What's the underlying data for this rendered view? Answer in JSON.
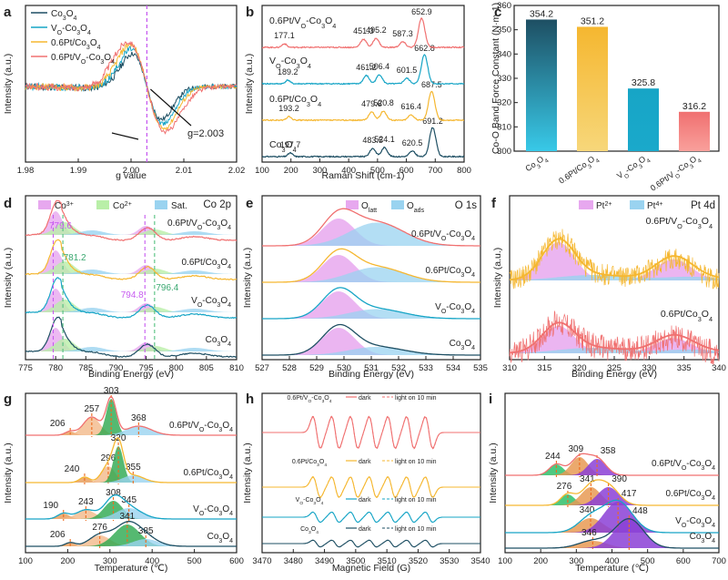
{
  "colors": {
    "co": "#1e4f63",
    "vo": "#17a5c6",
    "pt": "#f5b730",
    "ptvo": "#f07070",
    "pink": "#e7a8ef",
    "green": "#b9efa8",
    "blue": "#9ad3f0",
    "purple": "#8b40d6",
    "teal": "#1a9b7b",
    "orange": "#e79a54",
    "axis": "#222222",
    "dash": "#c75bf0"
  },
  "chart_data": [
    {
      "panel": "a",
      "type": "line",
      "xlabel": "g value",
      "ylabel": "Intensity (a.u.)",
      "x_ticks": [
        "1.98",
        "1.99",
        "2.00",
        "2.01",
        "2.02"
      ],
      "xlim": [
        1.98,
        2.02
      ],
      "legend": [
        "Co3O4",
        "VO-Co3O4",
        "0.6Pt/Co3O4",
        "0.6Pt/VO-Co3O4"
      ],
      "annotations": [
        "g=2.003"
      ]
    },
    {
      "panel": "b",
      "type": "line",
      "xlabel": "Raman Shift (cm-1)",
      "ylabel": "Intensity (a.u.)",
      "x_ticks": [
        "100",
        "200",
        "300",
        "400",
        "500",
        "600",
        "700",
        "800"
      ],
      "xlim": [
        100,
        800
      ],
      "series": [
        {
          "name": "Co3O4",
          "peaks": [
            197.7,
            483.5,
            524.1,
            620.5,
            691.2
          ]
        },
        {
          "name": "0.6Pt/Co3O4",
          "peaks": [
            193.2,
            479.6,
            520.8,
            616.4,
            687.5
          ]
        },
        {
          "name": "VO-Co3O4",
          "peaks": [
            189.2,
            461.2,
            506.4,
            601.5,
            662.8
          ]
        },
        {
          "name": "0.6Pt/VO-Co3O4",
          "peaks": [
            177.1,
            451.3,
            495.2,
            587.3,
            652.9
          ]
        }
      ]
    },
    {
      "panel": "c",
      "type": "bar",
      "ylabel": "Co-O Band Force Constant (N·m-1)",
      "categories": [
        "Co3O4",
        "0.6Pt/Co3O4",
        "VO-Co3O4",
        "0.6Pt/VO-Co3O4"
      ],
      "values": [
        354.2,
        351.2,
        325.8,
        316.2
      ],
      "value_labels": [
        "354.2",
        "351.2",
        "325.8",
        "316.2"
      ],
      "ylim": [
        300,
        360
      ],
      "y_ticks": [
        "300",
        "310",
        "320",
        "330",
        "340",
        "350",
        "360"
      ]
    },
    {
      "panel": "d",
      "type": "line",
      "title": "Co 2p",
      "xlabel": "Binding Energy (eV)",
      "ylabel": "Intensity (a.u.)",
      "x_ticks": [
        "775",
        "780",
        "785",
        "790",
        "795",
        "800",
        "805",
        "810"
      ],
      "xlim": [
        775,
        810
      ],
      "legend": [
        "Co3+",
        "Co2+",
        "Sat."
      ],
      "samples": [
        "0.6Pt/VO-Co3O4",
        "0.6Pt/Co3O4",
        "VO-Co3O4",
        "Co3O4"
      ],
      "annotations": [
        "779.6",
        "781.2",
        "794.8",
        "796.4"
      ]
    },
    {
      "panel": "e",
      "type": "line",
      "title": "O 1s",
      "xlabel": "Binding Energy (eV)",
      "ylabel": "Intensity (a.u.)",
      "x_ticks": [
        "527",
        "528",
        "529",
        "530",
        "531",
        "532",
        "533",
        "534",
        "535"
      ],
      "xlim": [
        527,
        535
      ],
      "legend": [
        "Olatt",
        "Oads"
      ],
      "samples": [
        "0.6Pt/VO-Co3O4",
        "0.6Pt/Co3O4",
        "VO-Co3O4",
        "Co3O4"
      ]
    },
    {
      "panel": "f",
      "type": "line",
      "title": "Pt 4d",
      "xlabel": "Binding Energy (eV)",
      "ylabel": "Intensity (a.u.)",
      "x_ticks": [
        "310",
        "315",
        "320",
        "325",
        "330",
        "335",
        "340"
      ],
      "xlim": [
        310,
        340
      ],
      "legend": [
        "Pt2+",
        "Pt4+"
      ],
      "samples": [
        "0.6Pt/VO-Co3O4",
        "0.6Pt/Co3O4"
      ]
    },
    {
      "panel": "g",
      "type": "area",
      "xlabel": "Temperature (℃)",
      "ylabel": "Intensity (a.u.)",
      "x_ticks": [
        "100",
        "200",
        "300",
        "400",
        "500",
        "600"
      ],
      "xlim": [
        100,
        600
      ],
      "series": [
        {
          "name": "0.6Pt/VO-Co3O4",
          "peaks": [
            206,
            257,
            303,
            368
          ]
        },
        {
          "name": "0.6Pt/Co3O4",
          "peaks": [
            240,
            296,
            320,
            355
          ]
        },
        {
          "name": "VO-Co3O4",
          "peaks": [
            190,
            243,
            308,
            345
          ]
        },
        {
          "name": "Co3O4",
          "peaks": [
            206,
            276,
            341,
            385
          ]
        }
      ]
    },
    {
      "panel": "h",
      "type": "line",
      "xlabel": "Magnetic Field (G)",
      "ylabel": "Intensity (a.u.)",
      "x_ticks": [
        "3470",
        "3480",
        "3490",
        "3500",
        "3510",
        "3520",
        "3530",
        "3540"
      ],
      "xlim": [
        3470,
        3540
      ],
      "legend": [
        "dark",
        "light on 10 min"
      ],
      "samples": [
        "0.6Pt/VO-Co3O4",
        "0.6Pt/Co3O4",
        "VO-Co3O4",
        "Co3O4"
      ]
    },
    {
      "panel": "i",
      "type": "area",
      "xlabel": "Temperature (℃)",
      "ylabel": "Intensity (a.u.)",
      "x_ticks": [
        "100",
        "200",
        "300",
        "400",
        "500",
        "600",
        "700"
      ],
      "xlim": [
        100,
        700
      ],
      "series": [
        {
          "name": "0.6Pt/VO-Co3O4",
          "peaks": [
            244,
            309,
            358
          ]
        },
        {
          "name": "0.6Pt/Co3O4",
          "peaks": [
            276,
            341,
            390
          ]
        },
        {
          "name": "VO-Co3O4",
          "peaks": [
            340,
            417
          ]
        },
        {
          "name": "Co3O4",
          "peaks": [
            346,
            448
          ]
        }
      ]
    }
  ]
}
